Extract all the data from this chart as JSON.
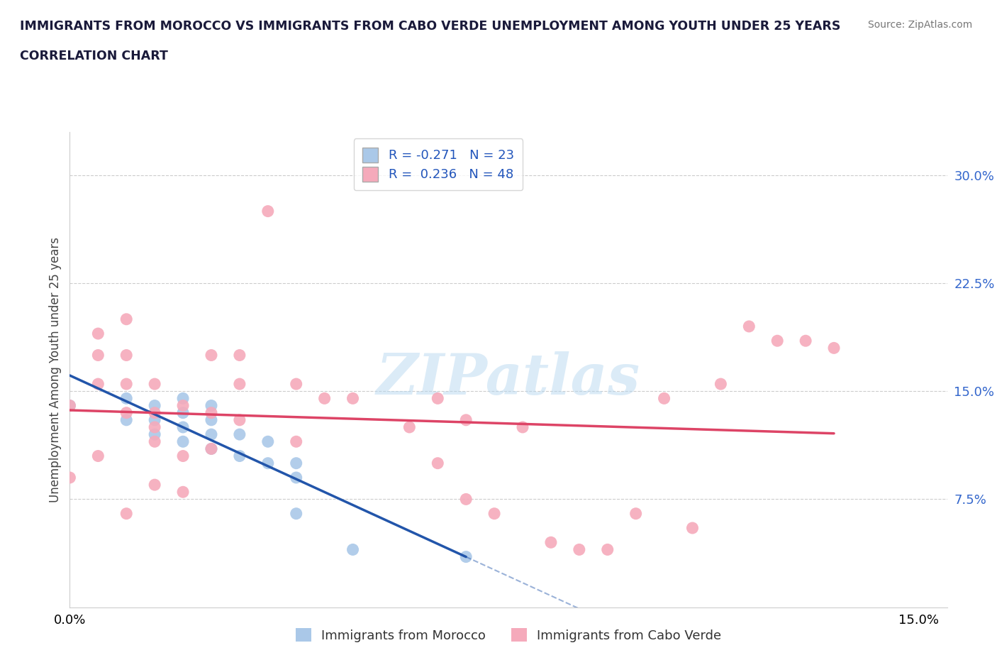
{
  "title_line1": "IMMIGRANTS FROM MOROCCO VS IMMIGRANTS FROM CABO VERDE UNEMPLOYMENT AMONG YOUTH UNDER 25 YEARS",
  "title_line2": "CORRELATION CHART",
  "source": "Source: ZipAtlas.com",
  "ylabel": "Unemployment Among Youth under 25 years",
  "xlim": [
    0.0,
    0.155
  ],
  "ylim": [
    0.0,
    0.33
  ],
  "xtick_positions": [
    0.0,
    0.15
  ],
  "ytick_positions": [
    0.075,
    0.15,
    0.225,
    0.3
  ],
  "ytick_labels_right": [
    "7.5%",
    "15.0%",
    "22.5%",
    "30.0%"
  ],
  "R_morocco": -0.271,
  "N_morocco": 23,
  "R_caboverde": 0.236,
  "N_caboverde": 48,
  "color_morocco": "#aac8e8",
  "color_caboverde": "#f5aabb",
  "trendline_morocco": "#2255aa",
  "trendline_caboverde": "#dd4466",
  "watermark": "ZIPatlas",
  "morocco_x": [
    0.0,
    0.01,
    0.01,
    0.015,
    0.015,
    0.015,
    0.02,
    0.02,
    0.02,
    0.02,
    0.025,
    0.025,
    0.025,
    0.025,
    0.03,
    0.03,
    0.035,
    0.035,
    0.04,
    0.04,
    0.04,
    0.05,
    0.07
  ],
  "morocco_y": [
    0.14,
    0.145,
    0.13,
    0.14,
    0.13,
    0.12,
    0.145,
    0.135,
    0.125,
    0.115,
    0.14,
    0.13,
    0.12,
    0.11,
    0.12,
    0.105,
    0.115,
    0.1,
    0.1,
    0.09,
    0.065,
    0.04,
    0.035
  ],
  "caboverde_x": [
    0.0,
    0.0,
    0.005,
    0.005,
    0.005,
    0.005,
    0.01,
    0.01,
    0.01,
    0.01,
    0.01,
    0.015,
    0.015,
    0.015,
    0.015,
    0.015,
    0.02,
    0.02,
    0.02,
    0.025,
    0.025,
    0.025,
    0.03,
    0.03,
    0.03,
    0.035,
    0.04,
    0.04,
    0.045,
    0.05,
    0.06,
    0.065,
    0.065,
    0.07,
    0.07,
    0.075,
    0.08,
    0.085,
    0.09,
    0.095,
    0.1,
    0.105,
    0.11,
    0.115,
    0.12,
    0.125,
    0.13,
    0.135
  ],
  "caboverde_y": [
    0.14,
    0.09,
    0.19,
    0.175,
    0.155,
    0.105,
    0.2,
    0.175,
    0.155,
    0.135,
    0.065,
    0.155,
    0.135,
    0.125,
    0.115,
    0.085,
    0.14,
    0.105,
    0.08,
    0.175,
    0.135,
    0.11,
    0.175,
    0.155,
    0.13,
    0.275,
    0.155,
    0.115,
    0.145,
    0.145,
    0.125,
    0.145,
    0.1,
    0.13,
    0.075,
    0.065,
    0.125,
    0.045,
    0.04,
    0.04,
    0.065,
    0.145,
    0.055,
    0.155,
    0.195,
    0.185,
    0.185,
    0.18
  ],
  "legend_label_morocco": "R = -0.271   N = 23",
  "legend_label_caboverde": "R =  0.236   N = 48",
  "bottom_legend_morocco": "Immigrants from Morocco",
  "bottom_legend_caboverde": "Immigrants from Cabo Verde"
}
